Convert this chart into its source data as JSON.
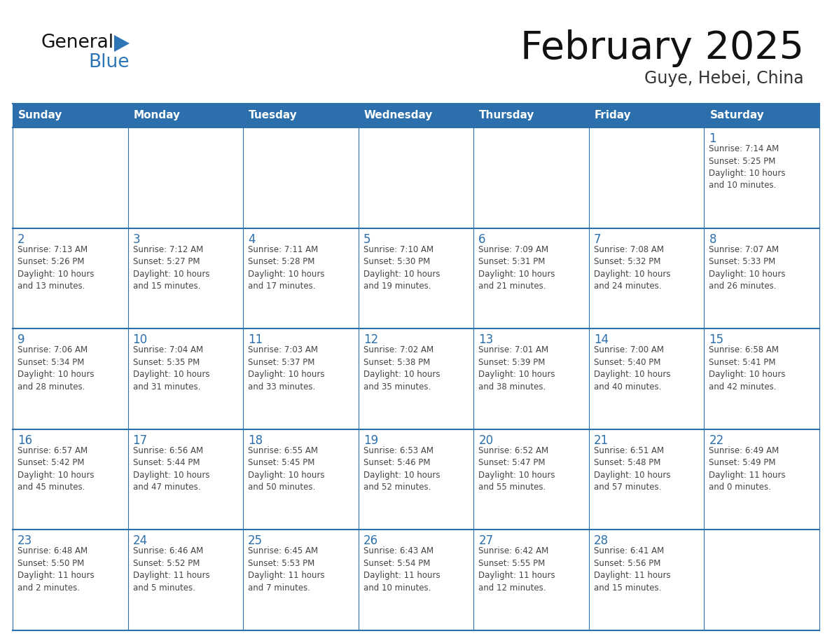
{
  "title": "February 2025",
  "subtitle": "Guye, Hebei, China",
  "days_of_week": [
    "Sunday",
    "Monday",
    "Tuesday",
    "Wednesday",
    "Thursday",
    "Friday",
    "Saturday"
  ],
  "header_bg_color": "#2c6fad",
  "header_text_color": "#ffffff",
  "cell_border_color": "#2c6fad",
  "day_number_color": "#2c6fad",
  "cell_text_color": "#444444",
  "bg_color": "#ffffff",
  "title_color": "#111111",
  "subtitle_color": "#333333",
  "logo_general_color": "#111111",
  "logo_blue_color": "#2e75b6",
  "logo_triangle_color": "#2e75b6",
  "weeks": [
    [
      {
        "day": null,
        "info": ""
      },
      {
        "day": null,
        "info": ""
      },
      {
        "day": null,
        "info": ""
      },
      {
        "day": null,
        "info": ""
      },
      {
        "day": null,
        "info": ""
      },
      {
        "day": null,
        "info": ""
      },
      {
        "day": 1,
        "info": "Sunrise: 7:14 AM\nSunset: 5:25 PM\nDaylight: 10 hours\nand 10 minutes."
      }
    ],
    [
      {
        "day": 2,
        "info": "Sunrise: 7:13 AM\nSunset: 5:26 PM\nDaylight: 10 hours\nand 13 minutes."
      },
      {
        "day": 3,
        "info": "Sunrise: 7:12 AM\nSunset: 5:27 PM\nDaylight: 10 hours\nand 15 minutes."
      },
      {
        "day": 4,
        "info": "Sunrise: 7:11 AM\nSunset: 5:28 PM\nDaylight: 10 hours\nand 17 minutes."
      },
      {
        "day": 5,
        "info": "Sunrise: 7:10 AM\nSunset: 5:30 PM\nDaylight: 10 hours\nand 19 minutes."
      },
      {
        "day": 6,
        "info": "Sunrise: 7:09 AM\nSunset: 5:31 PM\nDaylight: 10 hours\nand 21 minutes."
      },
      {
        "day": 7,
        "info": "Sunrise: 7:08 AM\nSunset: 5:32 PM\nDaylight: 10 hours\nand 24 minutes."
      },
      {
        "day": 8,
        "info": "Sunrise: 7:07 AM\nSunset: 5:33 PM\nDaylight: 10 hours\nand 26 minutes."
      }
    ],
    [
      {
        "day": 9,
        "info": "Sunrise: 7:06 AM\nSunset: 5:34 PM\nDaylight: 10 hours\nand 28 minutes."
      },
      {
        "day": 10,
        "info": "Sunrise: 7:04 AM\nSunset: 5:35 PM\nDaylight: 10 hours\nand 31 minutes."
      },
      {
        "day": 11,
        "info": "Sunrise: 7:03 AM\nSunset: 5:37 PM\nDaylight: 10 hours\nand 33 minutes."
      },
      {
        "day": 12,
        "info": "Sunrise: 7:02 AM\nSunset: 5:38 PM\nDaylight: 10 hours\nand 35 minutes."
      },
      {
        "day": 13,
        "info": "Sunrise: 7:01 AM\nSunset: 5:39 PM\nDaylight: 10 hours\nand 38 minutes."
      },
      {
        "day": 14,
        "info": "Sunrise: 7:00 AM\nSunset: 5:40 PM\nDaylight: 10 hours\nand 40 minutes."
      },
      {
        "day": 15,
        "info": "Sunrise: 6:58 AM\nSunset: 5:41 PM\nDaylight: 10 hours\nand 42 minutes."
      }
    ],
    [
      {
        "day": 16,
        "info": "Sunrise: 6:57 AM\nSunset: 5:42 PM\nDaylight: 10 hours\nand 45 minutes."
      },
      {
        "day": 17,
        "info": "Sunrise: 6:56 AM\nSunset: 5:44 PM\nDaylight: 10 hours\nand 47 minutes."
      },
      {
        "day": 18,
        "info": "Sunrise: 6:55 AM\nSunset: 5:45 PM\nDaylight: 10 hours\nand 50 minutes."
      },
      {
        "day": 19,
        "info": "Sunrise: 6:53 AM\nSunset: 5:46 PM\nDaylight: 10 hours\nand 52 minutes."
      },
      {
        "day": 20,
        "info": "Sunrise: 6:52 AM\nSunset: 5:47 PM\nDaylight: 10 hours\nand 55 minutes."
      },
      {
        "day": 21,
        "info": "Sunrise: 6:51 AM\nSunset: 5:48 PM\nDaylight: 10 hours\nand 57 minutes."
      },
      {
        "day": 22,
        "info": "Sunrise: 6:49 AM\nSunset: 5:49 PM\nDaylight: 11 hours\nand 0 minutes."
      }
    ],
    [
      {
        "day": 23,
        "info": "Sunrise: 6:48 AM\nSunset: 5:50 PM\nDaylight: 11 hours\nand 2 minutes."
      },
      {
        "day": 24,
        "info": "Sunrise: 6:46 AM\nSunset: 5:52 PM\nDaylight: 11 hours\nand 5 minutes."
      },
      {
        "day": 25,
        "info": "Sunrise: 6:45 AM\nSunset: 5:53 PM\nDaylight: 11 hours\nand 7 minutes."
      },
      {
        "day": 26,
        "info": "Sunrise: 6:43 AM\nSunset: 5:54 PM\nDaylight: 11 hours\nand 10 minutes."
      },
      {
        "day": 27,
        "info": "Sunrise: 6:42 AM\nSunset: 5:55 PM\nDaylight: 11 hours\nand 12 minutes."
      },
      {
        "day": 28,
        "info": "Sunrise: 6:41 AM\nSunset: 5:56 PM\nDaylight: 11 hours\nand 15 minutes."
      },
      {
        "day": null,
        "info": ""
      }
    ]
  ]
}
